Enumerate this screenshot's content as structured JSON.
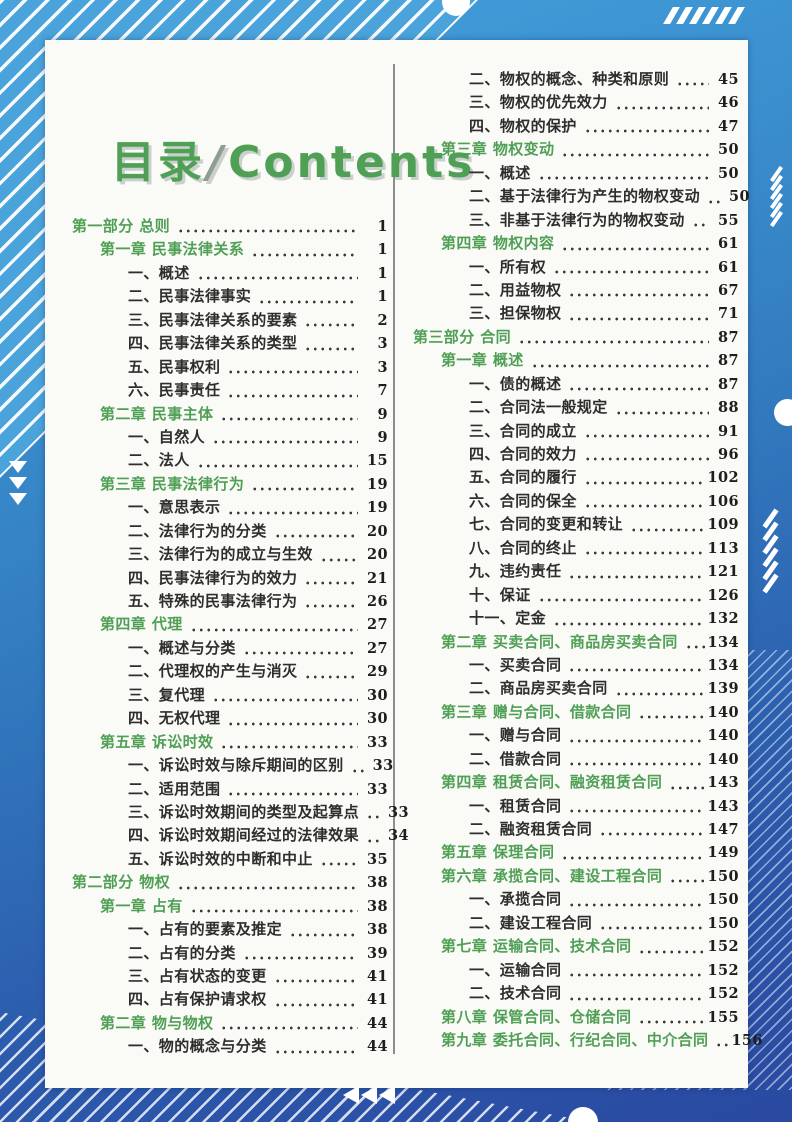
{
  "title": {
    "cn": "目录",
    "slash": "/",
    "en": "Contents"
  },
  "colors": {
    "heading_green": "#4f9f55",
    "item_ink": "#2e2e2e",
    "page_background": "#fafaf7",
    "frame_blue_top": "#46a2de",
    "frame_blue_bottom": "#2a49a1"
  },
  "toc": {
    "left": [
      {
        "level": "part",
        "label": "第一部分 总则",
        "page": "1"
      },
      {
        "level": "chapter",
        "label": "第一章 民事法律关系",
        "page": "1"
      },
      {
        "level": "item",
        "label": "一、概述",
        "page": "1"
      },
      {
        "level": "item",
        "label": "二、民事法律事实",
        "page": "1"
      },
      {
        "level": "item",
        "label": "三、民事法律关系的要素",
        "page": "2"
      },
      {
        "level": "item",
        "label": "四、民事法律关系的类型",
        "page": "3"
      },
      {
        "level": "item",
        "label": "五、民事权利",
        "page": "3"
      },
      {
        "level": "item",
        "label": "六、民事责任",
        "page": "7"
      },
      {
        "level": "chapter",
        "label": "第二章 民事主体",
        "page": "9"
      },
      {
        "level": "item",
        "label": "一、自然人",
        "page": "9"
      },
      {
        "level": "item",
        "label": "二、法人",
        "page": "15"
      },
      {
        "level": "chapter",
        "label": "第三章 民事法律行为",
        "page": "19"
      },
      {
        "level": "item",
        "label": "一、意思表示",
        "page": "19"
      },
      {
        "level": "item",
        "label": "二、法律行为的分类",
        "page": "20"
      },
      {
        "level": "item",
        "label": "三、法律行为的成立与生效",
        "page": "20"
      },
      {
        "level": "item",
        "label": "四、民事法律行为的效力",
        "page": "21"
      },
      {
        "level": "item",
        "label": "五、特殊的民事法律行为",
        "page": "26"
      },
      {
        "level": "chapter",
        "label": "第四章 代理",
        "page": "27"
      },
      {
        "level": "item",
        "label": "一、概述与分类",
        "page": "27"
      },
      {
        "level": "item",
        "label": "二、代理权的产生与消灭",
        "page": "29"
      },
      {
        "level": "item",
        "label": "三、复代理",
        "page": "30"
      },
      {
        "level": "item",
        "label": "四、无权代理",
        "page": "30"
      },
      {
        "level": "chapter",
        "label": "第五章 诉讼时效",
        "page": "33"
      },
      {
        "level": "item",
        "label": "一、诉讼时效与除斥期间的区别",
        "page": "33"
      },
      {
        "level": "item",
        "label": "二、适用范围",
        "page": "33"
      },
      {
        "level": "item",
        "label": "三、诉讼时效期间的类型及起算点",
        "page": "33"
      },
      {
        "level": "item",
        "label": "四、诉讼时效期间经过的法律效果",
        "page": "34"
      },
      {
        "level": "item",
        "label": "五、诉讼时效的中断和中止",
        "page": "35"
      },
      {
        "level": "part",
        "label": "第二部分 物权",
        "page": "38"
      },
      {
        "level": "chapter",
        "label": "第一章 占有",
        "page": "38"
      },
      {
        "level": "item",
        "label": "一、占有的要素及推定",
        "page": "38"
      },
      {
        "level": "item",
        "label": "二、占有的分类",
        "page": "39"
      },
      {
        "level": "item",
        "label": "三、占有状态的变更",
        "page": "41"
      },
      {
        "level": "item",
        "label": "四、占有保护请求权",
        "page": "41"
      },
      {
        "level": "chapter",
        "label": "第二章 物与物权",
        "page": "44"
      },
      {
        "level": "item",
        "label": "一、物的概念与分类",
        "page": "44"
      }
    ],
    "right": [
      {
        "level": "item",
        "label": "二、物权的概念、种类和原则",
        "page": "45"
      },
      {
        "level": "item",
        "label": "三、物权的优先效力",
        "page": "46"
      },
      {
        "level": "item",
        "label": "四、物权的保护",
        "page": "47"
      },
      {
        "level": "chapter",
        "label": "第三章 物权变动",
        "page": "50"
      },
      {
        "level": "item",
        "label": "一、概述",
        "page": "50"
      },
      {
        "level": "item",
        "label": "二、基于法律行为产生的物权变动",
        "page": "50"
      },
      {
        "level": "item",
        "label": "三、非基于法律行为的物权变动",
        "page": "55"
      },
      {
        "level": "chapter",
        "label": "第四章 物权内容",
        "page": "61"
      },
      {
        "level": "item",
        "label": "一、所有权",
        "page": "61"
      },
      {
        "level": "item",
        "label": "二、用益物权",
        "page": "67"
      },
      {
        "level": "item",
        "label": "三、担保物权",
        "page": "71"
      },
      {
        "level": "part",
        "label": "第三部分 合同",
        "page": "87"
      },
      {
        "level": "chapter",
        "label": "第一章 概述",
        "page": "87"
      },
      {
        "level": "item",
        "label": "一、债的概述",
        "page": "87"
      },
      {
        "level": "item",
        "label": "二、合同法一般规定",
        "page": "88"
      },
      {
        "level": "item",
        "label": "三、合同的成立",
        "page": "91"
      },
      {
        "level": "item",
        "label": "四、合同的效力",
        "page": "96"
      },
      {
        "level": "item",
        "label": "五、合同的履行",
        "page": "102"
      },
      {
        "level": "item",
        "label": "六、合同的保全",
        "page": "106"
      },
      {
        "level": "item",
        "label": "七、合同的变更和转让",
        "page": "109"
      },
      {
        "level": "item",
        "label": "八、合同的终止",
        "page": "113"
      },
      {
        "level": "item",
        "label": "九、违约责任",
        "page": "121"
      },
      {
        "level": "item",
        "label": "十、保证",
        "page": "126"
      },
      {
        "level": "item",
        "label": "十一、定金",
        "page": "132"
      },
      {
        "level": "chapter",
        "label": "第二章 买卖合同、商品房买卖合同",
        "page": "134"
      },
      {
        "level": "item",
        "label": "一、买卖合同",
        "page": "134"
      },
      {
        "level": "item",
        "label": "二、商品房买卖合同",
        "page": "139"
      },
      {
        "level": "chapter",
        "label": "第三章 赠与合同、借款合同",
        "page": "140"
      },
      {
        "level": "item",
        "label": "一、赠与合同",
        "page": "140"
      },
      {
        "level": "item",
        "label": "二、借款合同",
        "page": "140"
      },
      {
        "level": "chapter",
        "label": "第四章 租赁合同、融资租赁合同",
        "page": "143"
      },
      {
        "level": "item",
        "label": "一、租赁合同",
        "page": "143"
      },
      {
        "level": "item",
        "label": "二、融资租赁合同",
        "page": "147"
      },
      {
        "level": "chapter",
        "label": "第五章 保理合同",
        "page": "149"
      },
      {
        "level": "chapter",
        "label": "第六章 承揽合同、建设工程合同",
        "page": "150"
      },
      {
        "level": "item",
        "label": "一、承揽合同",
        "page": "150"
      },
      {
        "level": "item",
        "label": "二、建设工程合同",
        "page": "150"
      },
      {
        "level": "chapter",
        "label": "第七章 运输合同、技术合同",
        "page": "152"
      },
      {
        "level": "item",
        "label": "一、运输合同",
        "page": "152"
      },
      {
        "level": "item",
        "label": "二、技术合同",
        "page": "152"
      },
      {
        "level": "chapter",
        "label": "第八章 保管合同、仓储合同",
        "page": "155"
      },
      {
        "level": "chapter",
        "label": "第九章 委托合同、行纪合同、中介合同",
        "page": "156"
      }
    ]
  }
}
